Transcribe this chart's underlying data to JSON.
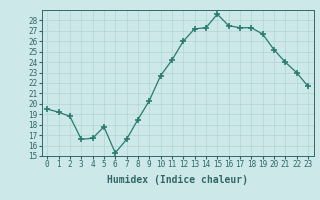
{
  "x": [
    0,
    1,
    2,
    3,
    4,
    5,
    6,
    7,
    8,
    9,
    10,
    11,
    12,
    13,
    14,
    15,
    16,
    17,
    18,
    19,
    20,
    21,
    22,
    23
  ],
  "y": [
    19.5,
    19.2,
    18.8,
    16.6,
    16.7,
    17.8,
    15.3,
    16.6,
    18.5,
    20.3,
    22.7,
    24.2,
    26.0,
    27.2,
    27.3,
    28.6,
    27.5,
    27.3,
    27.3,
    26.7,
    25.2,
    24.0,
    23.0,
    21.7
  ],
  "line_color": "#2a7a6e",
  "marker": "+",
  "marker_size": 4,
  "marker_lw": 1.2,
  "bg_color": "#cce8e8",
  "grid_color": "#b0d4d4",
  "xlabel": "Humidex (Indice chaleur)",
  "ylim": [
    15,
    29
  ],
  "xlim": [
    -0.5,
    23.5
  ],
  "yticks": [
    15,
    16,
    17,
    18,
    19,
    20,
    21,
    22,
    23,
    24,
    25,
    26,
    27,
    28
  ],
  "xticks": [
    0,
    1,
    2,
    3,
    4,
    5,
    6,
    7,
    8,
    9,
    10,
    11,
    12,
    13,
    14,
    15,
    16,
    17,
    18,
    19,
    20,
    21,
    22,
    23
  ],
  "font_color": "#336666",
  "tick_fontsize": 5.5,
  "xlabel_fontsize": 7.0
}
